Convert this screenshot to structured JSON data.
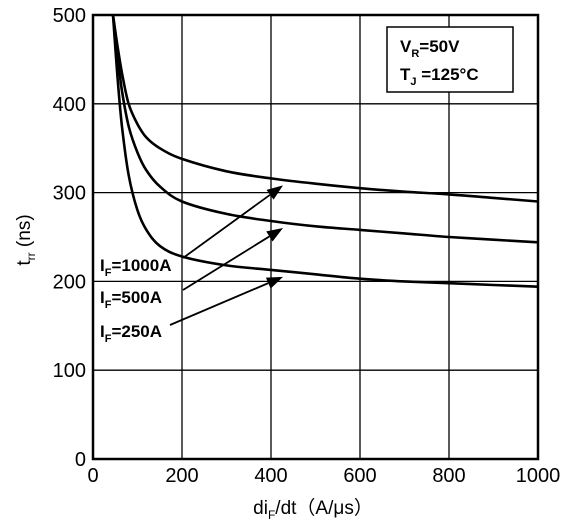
{
  "chart_data": {
    "type": "line",
    "xlabel": {
      "main": "di",
      "sub": "F",
      "rest": "/dt（A/μs）"
    },
    "ylabel": {
      "main": "t",
      "sub": "rr",
      "rest": " (ns)"
    },
    "xlim": [
      0,
      1000
    ],
    "ylim": [
      0,
      500
    ],
    "xticks": [
      "0",
      "200",
      "400",
      "600",
      "800",
      "1000"
    ],
    "yticks": [
      "0",
      "100",
      "200",
      "300",
      "400",
      "500"
    ],
    "grid": true,
    "conditions": [
      {
        "main": "V",
        "sub": "R",
        "rest": "=50V"
      },
      {
        "main": "T",
        "sub": "J",
        "rest": " =125°C"
      }
    ],
    "series": [
      {
        "name": "I_F=1000A",
        "label": {
          "main": "I",
          "sub": "F",
          "rest": "=1000A"
        },
        "x": [
          45,
          55,
          65,
          80,
          100,
          120,
          150,
          200,
          300,
          400,
          500,
          600,
          700,
          800,
          900,
          1000
        ],
        "y": [
          500,
          465,
          435,
          400,
          377,
          362,
          350,
          338,
          324,
          316,
          310,
          305,
          301,
          298,
          294,
          290
        ]
      },
      {
        "name": "I_F=500A",
        "label": {
          "main": "I",
          "sub": "F",
          "rest": "=500A"
        },
        "x": [
          45,
          55,
          65,
          80,
          100,
          120,
          150,
          200,
          300,
          400,
          500,
          600,
          700,
          800,
          900,
          1000
        ],
        "y": [
          500,
          455,
          415,
          375,
          345,
          325,
          307,
          290,
          276,
          268,
          262,
          258,
          254,
          250,
          247,
          244
        ]
      },
      {
        "name": "I_F=250A",
        "label": {
          "main": "I",
          "sub": "F",
          "rest": "=250A"
        },
        "x": [
          45,
          55,
          65,
          80,
          100,
          120,
          150,
          200,
          300,
          400,
          500,
          600,
          700,
          800,
          900,
          1000
        ],
        "y": [
          500,
          430,
          375,
          320,
          280,
          258,
          240,
          228,
          218,
          213,
          208,
          203,
          200,
          198,
          196,
          194
        ]
      }
    ]
  }
}
